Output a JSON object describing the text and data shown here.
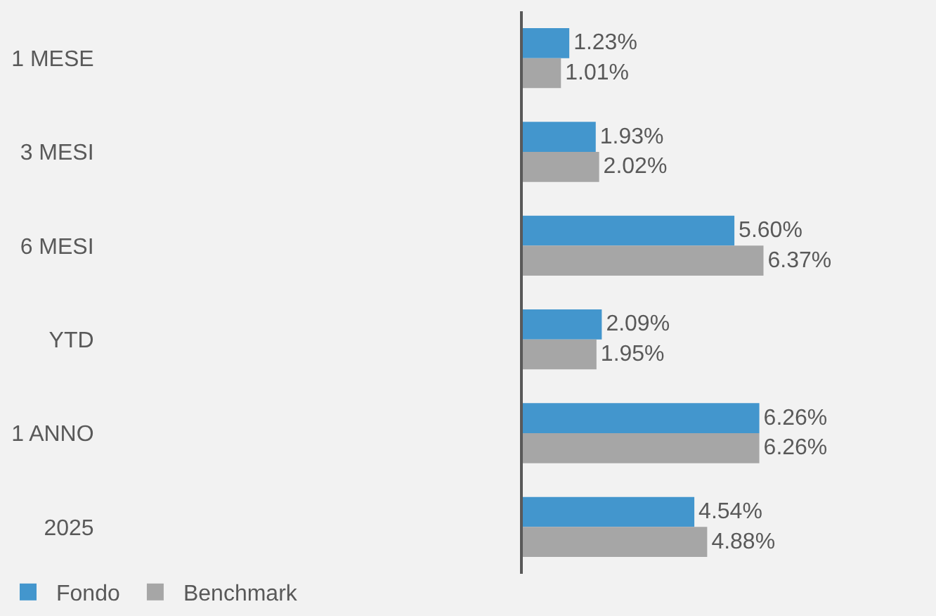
{
  "chart_data": {
    "type": "bar",
    "orientation": "horizontal",
    "categories": [
      "1 MESE",
      "3 MESI",
      "6 MESI",
      "YTD",
      "1 ANNO",
      "2025"
    ],
    "series": [
      {
        "name": "Fondo",
        "color": "#4396cd",
        "values": [
          1.23,
          1.93,
          5.6,
          2.09,
          6.26,
          4.54
        ],
        "value_labels": [
          "1.23%",
          "1.93%",
          "5.60%",
          "2.09%",
          "6.26%",
          "4.54%"
        ]
      },
      {
        "name": "Benchmark",
        "color": "#a6a6a6",
        "values": [
          1.01,
          2.02,
          6.37,
          1.95,
          6.26,
          4.88
        ],
        "value_labels": [
          "1.01%",
          "2.02%",
          "6.37%",
          "1.95%",
          "6.26%",
          "4.88%"
        ]
      }
    ],
    "legend": "bottom left",
    "grid": false
  }
}
